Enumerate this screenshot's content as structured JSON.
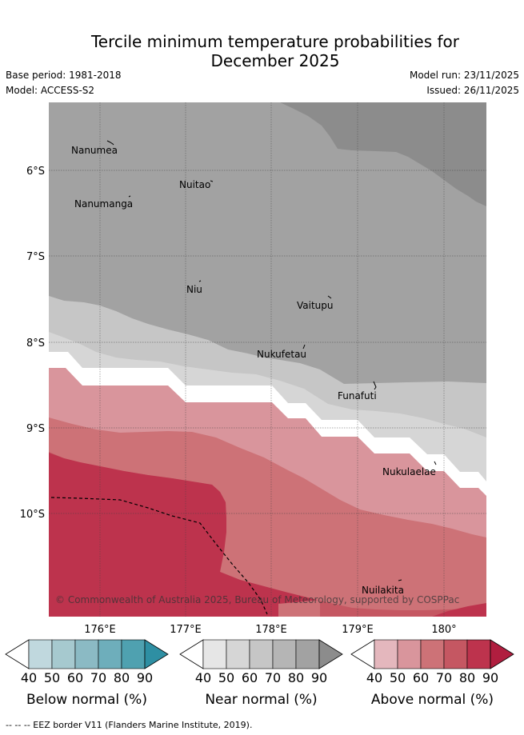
{
  "header": {
    "title_line1": "Tercile minimum temperature probabilities for",
    "title_line2": "December 2025",
    "base_period": "Base period: 1981-2018",
    "model": "Model: ACCESS-S2",
    "model_run": "Model run: 23/11/2025",
    "issued": "Issued: 26/11/2025"
  },
  "map": {
    "lat_labels": [
      "6°S",
      "7°S",
      "8°S",
      "9°S",
      "10°S"
    ],
    "lon_labels": [
      "176°E",
      "177°E",
      "178°E",
      "179°E",
      "180°"
    ],
    "islands": [
      {
        "name": "Nanumea"
      },
      {
        "name": "Nuitao"
      },
      {
        "name": "Nanumanga"
      },
      {
        "name": "Niu"
      },
      {
        "name": "Vaitupu"
      },
      {
        "name": "Nukufetau"
      },
      {
        "name": "Funafuti"
      },
      {
        "name": "Nukulaelae"
      },
      {
        "name": "Nuilakita"
      }
    ],
    "copyright": "© Commonwealth of Australia 2025, Bureau of Meteorology, supported by COSPPac"
  },
  "colorbars": [
    {
      "title": "Below normal (%)",
      "ticks": [
        "40",
        "50",
        "60",
        "70",
        "80",
        "90"
      ],
      "colors": [
        "#c0d8de",
        "#a6c9cf",
        "#8bbac4",
        "#6eaebb",
        "#4fa1b0",
        "#2e8fa3"
      ]
    },
    {
      "title": "Near normal (%)",
      "ticks": [
        "40",
        "50",
        "60",
        "70",
        "80",
        "90"
      ],
      "colors": [
        "#e6e6e6",
        "#d6d6d6",
        "#c6c6c6",
        "#b5b5b5",
        "#a2a2a2",
        "#8c8c8c"
      ]
    },
    {
      "title": "Above normal (%)",
      "ticks": [
        "40",
        "50",
        "60",
        "70",
        "80",
        "90"
      ],
      "colors": [
        "#e4b7bd",
        "#d9959c",
        "#cd7277",
        "#c55762",
        "#bd334d",
        "#b01e3f"
      ]
    }
  ],
  "footer": "--  --  -- EEZ border V11 (Flanders Marine Institute, 2019)."
}
